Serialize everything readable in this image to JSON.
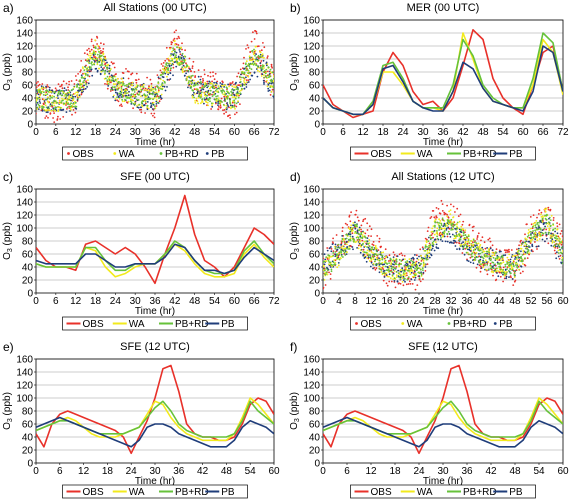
{
  "colors": {
    "OBS": "#e8312a",
    "WA": "#f2ea1c",
    "PB+RD": "#66c23a",
    "PB": "#1f3d7a"
  },
  "chart_data": [
    {
      "type": "scatter",
      "panel_label": "a)",
      "title": "All Stations (00 UTC)",
      "xlabel": "Time (hr)",
      "ylabel": "O3 (ppb)",
      "xlim": [
        0,
        72
      ],
      "ylim": [
        0,
        160
      ],
      "xticks": [
        0,
        6,
        12,
        18,
        24,
        30,
        36,
        42,
        48,
        54,
        60,
        66,
        72
      ],
      "yticks": [
        0,
        20,
        40,
        60,
        80,
        100,
        120,
        140,
        160
      ],
      "grid": true,
      "legend": "below",
      "legend_style": "dots",
      "legend_labels": [
        "OBS",
        "WA",
        "PB+RD",
        "PB"
      ],
      "x": [
        0,
        6,
        12,
        18,
        20,
        24,
        30,
        36,
        42,
        44,
        48,
        54,
        60,
        66,
        68,
        72
      ],
      "series": [
        {
          "name": "OBS",
          "values": [
            45,
            30,
            45,
            125,
            100,
            60,
            50,
            40,
            120,
            105,
            60,
            50,
            35,
            120,
            110,
            55
          ],
          "spread": 30
        },
        {
          "name": "WA",
          "values": [
            40,
            35,
            40,
            115,
            95,
            55,
            45,
            40,
            115,
            100,
            50,
            45,
            40,
            105,
            95,
            60
          ],
          "spread": 18
        },
        {
          "name": "PB+RD",
          "values": [
            40,
            35,
            40,
            110,
            95,
            55,
            45,
            40,
            110,
            100,
            55,
            45,
            40,
            105,
            95,
            60
          ],
          "spread": 15
        },
        {
          "name": "PB",
          "values": [
            40,
            35,
            40,
            100,
            90,
            55,
            45,
            40,
            100,
            95,
            55,
            45,
            40,
            95,
            90,
            55
          ],
          "spread": 20
        }
      ]
    },
    {
      "type": "line",
      "panel_label": "b)",
      "title": "MER (00 UTC)",
      "xlabel": "Time (hr)",
      "ylabel": "O3 (ppb)",
      "xlim": [
        0,
        72
      ],
      "ylim": [
        0,
        160
      ],
      "xticks": [
        0,
        6,
        12,
        18,
        24,
        30,
        36,
        42,
        48,
        54,
        60,
        66,
        72
      ],
      "yticks": [
        0,
        20,
        40,
        60,
        80,
        100,
        120,
        140,
        160
      ],
      "grid": true,
      "legend": "below",
      "legend_style": "lines",
      "x": [
        0,
        3,
        6,
        9,
        12,
        15,
        18,
        21,
        24,
        27,
        30,
        33,
        36,
        39,
        42,
        45,
        48,
        51,
        54,
        57,
        60,
        63,
        66,
        69,
        72
      ],
      "series": [
        {
          "name": "OBS",
          "values": [
            60,
            30,
            20,
            10,
            15,
            20,
            80,
            110,
            90,
            50,
            30,
            35,
            20,
            40,
            90,
            145,
            130,
            70,
            40,
            25,
            15,
            60,
            110,
            120,
            50
          ]
        },
        {
          "name": "WA",
          "values": [
            40,
            25,
            20,
            15,
            15,
            30,
            80,
            80,
            60,
            35,
            25,
            25,
            20,
            50,
            140,
            100,
            55,
            35,
            30,
            25,
            25,
            60,
            130,
            110,
            45
          ]
        },
        {
          "name": "PB+RD",
          "values": [
            40,
            25,
            20,
            15,
            15,
            35,
            90,
            95,
            70,
            35,
            25,
            25,
            25,
            60,
            130,
            105,
            60,
            40,
            30,
            25,
            25,
            70,
            140,
            125,
            50
          ]
        },
        {
          "name": "PB",
          "values": [
            40,
            25,
            20,
            15,
            15,
            30,
            85,
            90,
            65,
            35,
            25,
            20,
            20,
            50,
            95,
            85,
            55,
            35,
            30,
            25,
            20,
            50,
            120,
            110,
            50
          ]
        }
      ]
    },
    {
      "type": "line",
      "panel_label": "c)",
      "title": "SFE (00 UTC)",
      "xlabel": "Time (hr)",
      "ylabel": "O3 (ppb)",
      "xlim": [
        0,
        72
      ],
      "ylim": [
        0,
        160
      ],
      "xticks": [
        0,
        6,
        12,
        18,
        24,
        30,
        36,
        42,
        48,
        54,
        60,
        66,
        72
      ],
      "yticks": [
        0,
        20,
        40,
        60,
        80,
        100,
        120,
        140,
        160
      ],
      "grid": true,
      "legend": "below",
      "legend_style": "lines",
      "x": [
        0,
        3,
        6,
        9,
        12,
        15,
        18,
        21,
        24,
        27,
        30,
        33,
        36,
        39,
        42,
        45,
        48,
        51,
        54,
        57,
        60,
        63,
        66,
        69,
        72
      ],
      "series": [
        {
          "name": "OBS",
          "values": [
            70,
            50,
            40,
            40,
            35,
            75,
            80,
            70,
            60,
            70,
            60,
            40,
            15,
            60,
            100,
            150,
            90,
            50,
            40,
            25,
            40,
            70,
            100,
            90,
            75
          ]
        },
        {
          "name": "WA",
          "values": [
            45,
            40,
            40,
            40,
            40,
            70,
            65,
            40,
            25,
            30,
            40,
            45,
            45,
            60,
            75,
            65,
            45,
            30,
            25,
            25,
            30,
            60,
            75,
            55,
            40
          ]
        },
        {
          "name": "PB+RD",
          "values": [
            45,
            40,
            40,
            40,
            40,
            70,
            70,
            50,
            35,
            35,
            45,
            45,
            45,
            60,
            80,
            70,
            50,
            35,
            30,
            30,
            35,
            65,
            80,
            60,
            45
          ]
        },
        {
          "name": "PB",
          "values": [
            50,
            45,
            45,
            45,
            45,
            60,
            60,
            50,
            40,
            40,
            45,
            45,
            45,
            55,
            75,
            70,
            50,
            35,
            35,
            30,
            35,
            55,
            70,
            60,
            50
          ]
        }
      ]
    },
    {
      "type": "scatter",
      "panel_label": "d)",
      "title": "All Stations (12 UTC)",
      "xlabel": "Time (hr)",
      "ylabel": "O3 (ppb)",
      "xlim": [
        0,
        60
      ],
      "ylim": [
        0,
        160
      ],
      "xticks": [
        0,
        4,
        8,
        12,
        16,
        20,
        24,
        28,
        32,
        36,
        40,
        44,
        48,
        52,
        56,
        60
      ],
      "yticks": [
        0,
        20,
        40,
        60,
        80,
        100,
        120,
        140,
        160
      ],
      "grid": true,
      "legend": "below",
      "legend_style": "dots",
      "legend_labels": [
        "OBS",
        "WA",
        "PB+RD",
        "PB"
      ],
      "x": [
        0,
        4,
        8,
        12,
        16,
        20,
        24,
        28,
        32,
        36,
        40,
        44,
        48,
        52,
        56,
        60
      ],
      "series": [
        {
          "name": "OBS",
          "values": [
            30,
            70,
            110,
            70,
            40,
            35,
            30,
            110,
            115,
            80,
            60,
            45,
            35,
            90,
            110,
            70
          ],
          "spread": 30
        },
        {
          "name": "WA",
          "values": [
            35,
            60,
            95,
            60,
            40,
            35,
            35,
            95,
            110,
            75,
            55,
            45,
            40,
            85,
            115,
            60
          ],
          "spread": 18
        },
        {
          "name": "PB+RD",
          "values": [
            35,
            60,
            95,
            60,
            40,
            35,
            35,
            95,
            105,
            75,
            55,
            45,
            40,
            85,
            110,
            60
          ],
          "spread": 15
        },
        {
          "name": "PB",
          "values": [
            40,
            65,
            90,
            60,
            40,
            35,
            40,
            85,
            95,
            70,
            55,
            45,
            40,
            80,
            100,
            55
          ],
          "spread": 20
        }
      ]
    },
    {
      "type": "line",
      "panel_label": "e)",
      "title": "SFE (12 UTC)",
      "xlabel": "Time (hr)",
      "ylabel": "O3 (ppb)",
      "xlim": [
        0,
        60
      ],
      "ylim": [
        0,
        160
      ],
      "xticks": [
        0,
        6,
        12,
        18,
        24,
        30,
        36,
        42,
        48,
        54,
        60
      ],
      "yticks": [
        0,
        20,
        40,
        60,
        80,
        100,
        120,
        140,
        160
      ],
      "grid": true,
      "legend": "below",
      "legend_style": "lines",
      "x": [
        0,
        2,
        4,
        6,
        8,
        10,
        12,
        14,
        16,
        18,
        20,
        22,
        24,
        26,
        28,
        30,
        32,
        34,
        36,
        38,
        40,
        42,
        44,
        46,
        48,
        50,
        52,
        54,
        56,
        58,
        60
      ],
      "series": [
        {
          "name": "OBS",
          "values": [
            45,
            25,
            60,
            75,
            80,
            75,
            70,
            65,
            60,
            55,
            50,
            40,
            15,
            40,
            65,
            100,
            145,
            150,
            110,
            60,
            45,
            40,
            40,
            35,
            35,
            40,
            60,
            90,
            100,
            95,
            75
          ]
        },
        {
          "name": "WA",
          "values": [
            50,
            55,
            60,
            65,
            70,
            65,
            55,
            45,
            40,
            40,
            40,
            45,
            50,
            55,
            75,
            95,
            90,
            70,
            55,
            45,
            40,
            35,
            35,
            35,
            35,
            45,
            70,
            100,
            90,
            75,
            60
          ]
        },
        {
          "name": "PB+RD",
          "values": [
            50,
            55,
            60,
            65,
            65,
            60,
            55,
            50,
            45,
            45,
            45,
            45,
            50,
            55,
            70,
            85,
            95,
            80,
            60,
            50,
            45,
            40,
            40,
            40,
            40,
            45,
            65,
            95,
            80,
            70,
            60
          ]
        },
        {
          "name": "PB",
          "values": [
            55,
            60,
            65,
            70,
            65,
            60,
            55,
            50,
            45,
            40,
            35,
            30,
            25,
            35,
            55,
            60,
            60,
            55,
            45,
            40,
            35,
            30,
            25,
            25,
            25,
            35,
            55,
            65,
            60,
            55,
            45
          ]
        }
      ]
    },
    {
      "type": "line",
      "panel_label": "f)",
      "title": "SFE (12 UTC)",
      "xlabel": "Time (hr)",
      "ylabel": "O3 (ppb)",
      "xlim": [
        0,
        60
      ],
      "ylim": [
        0,
        160
      ],
      "xticks": [
        0,
        6,
        12,
        18,
        24,
        30,
        36,
        42,
        48,
        54,
        60
      ],
      "yticks": [
        0,
        20,
        40,
        60,
        80,
        100,
        120,
        140,
        160
      ],
      "grid": true,
      "legend": "below",
      "legend_style": "lines",
      "x": [
        0,
        2,
        4,
        6,
        8,
        10,
        12,
        14,
        16,
        18,
        20,
        22,
        24,
        26,
        28,
        30,
        32,
        34,
        36,
        38,
        40,
        42,
        44,
        46,
        48,
        50,
        52,
        54,
        56,
        58,
        60
      ],
      "series": [
        {
          "name": "OBS",
          "values": [
            45,
            25,
            60,
            75,
            80,
            75,
            70,
            65,
            60,
            55,
            50,
            40,
            15,
            40,
            65,
            100,
            145,
            150,
            110,
            60,
            45,
            40,
            40,
            35,
            35,
            40,
            60,
            90,
            100,
            95,
            75
          ]
        },
        {
          "name": "WA",
          "values": [
            50,
            55,
            60,
            65,
            70,
            65,
            55,
            45,
            40,
            40,
            40,
            45,
            50,
            55,
            75,
            95,
            90,
            70,
            55,
            45,
            40,
            35,
            35,
            35,
            35,
            45,
            70,
            100,
            90,
            75,
            60
          ]
        },
        {
          "name": "PB+RD",
          "values": [
            50,
            55,
            60,
            65,
            65,
            60,
            55,
            50,
            45,
            45,
            45,
            45,
            50,
            55,
            70,
            85,
            95,
            80,
            60,
            50,
            45,
            40,
            40,
            40,
            40,
            45,
            65,
            95,
            80,
            70,
            60
          ]
        },
        {
          "name": "PB",
          "values": [
            55,
            60,
            65,
            70,
            65,
            60,
            55,
            50,
            45,
            40,
            35,
            30,
            25,
            35,
            55,
            60,
            60,
            55,
            45,
            40,
            35,
            30,
            25,
            25,
            25,
            35,
            55,
            65,
            60,
            55,
            45
          ]
        }
      ]
    }
  ]
}
